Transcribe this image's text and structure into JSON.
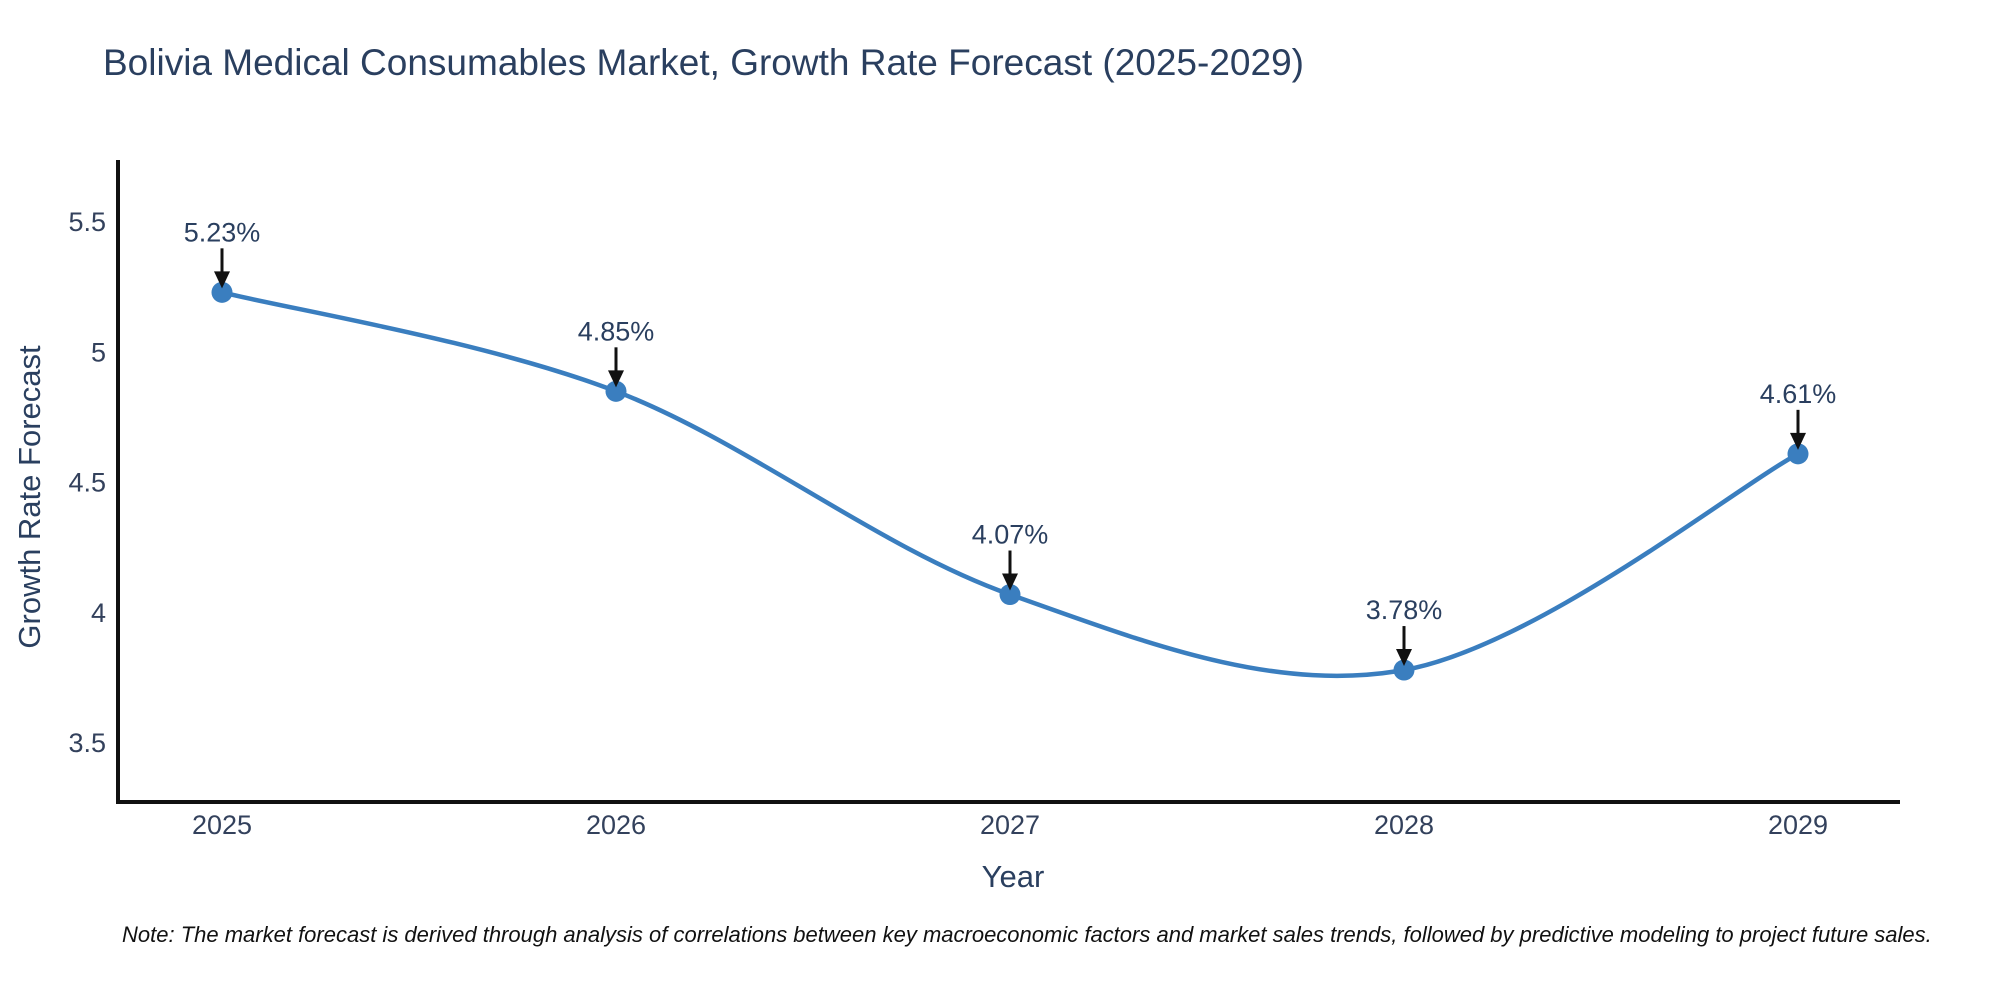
{
  "figure": {
    "note": "Note: The market forecast is derived through analysis of correlations between key macroeconomic factors and market sales trends, followed by predictive modeling to project future sales."
  },
  "chart_data": {
    "type": "line",
    "title": "Bolivia Medical Consumables Market, Growth Rate Forecast (2025-2029)",
    "xlabel": "Year",
    "ylabel": "Growth Rate Forecast",
    "x": [
      "2025",
      "2026",
      "2027",
      "2028",
      "2029"
    ],
    "series": [
      {
        "name": "Growth Rate Forecast",
        "values": [
          5.23,
          4.85,
          4.07,
          3.78,
          4.61
        ]
      }
    ],
    "point_labels": [
      "5.23%",
      "4.85%",
      "4.07%",
      "3.78%",
      "4.61%"
    ],
    "yticks": [
      5.5,
      5,
      4.5,
      4,
      3.5
    ],
    "ylim": [
      3.27,
      5.74
    ],
    "line_shape": "spline",
    "markers": true,
    "annotations_arrows": true,
    "grid": false,
    "legend_position": "none",
    "colors": {
      "line": "#3a7ebf",
      "marker": "#3a7ebf",
      "axis": "#111111",
      "arrow": "#111111",
      "text": "#2a3f5f",
      "tick_text": "#33415c",
      "note_text": "#111111",
      "background": "#ffffff"
    }
  }
}
